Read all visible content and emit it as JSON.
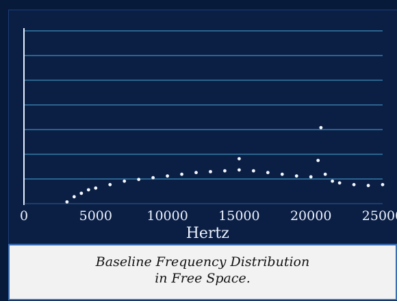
{
  "chart_data": {
    "type": "scatter",
    "title": "",
    "xlabel": "Hertz",
    "ylabel": "",
    "xlim": [
      0,
      25000
    ],
    "ylim": [
      0,
      10
    ],
    "grid": true,
    "x_ticks": [
      "0",
      "5000",
      "10000",
      "15000",
      "20000",
      "25000"
    ],
    "series": [
      {
        "x": [
          3000,
          3500,
          4000,
          4500,
          5000,
          6000,
          7000,
          8000,
          9000,
          10000,
          11000,
          12000,
          13000,
          14000,
          15000,
          16000,
          17000,
          18000,
          19000,
          20000,
          20500,
          21000,
          21500,
          22000,
          23000,
          24000,
          25000
        ],
        "y": [
          0.1,
          0.4,
          0.6,
          0.8,
          0.9,
          1.1,
          1.3,
          1.4,
          1.5,
          1.6,
          1.7,
          1.8,
          1.85,
          1.9,
          1.95,
          1.9,
          1.8,
          1.7,
          1.6,
          1.55,
          2.5,
          1.7,
          1.3,
          1.2,
          1.1,
          1.05,
          1.1
        ]
      }
    ],
    "annotations": [
      {
        "x": 15000,
        "y": 2.6
      },
      {
        "x": 20700,
        "y": 4.4
      }
    ]
  },
  "caption": {
    "line1": "Baseline Frequency Distribution",
    "line2": "in Free Space."
  }
}
